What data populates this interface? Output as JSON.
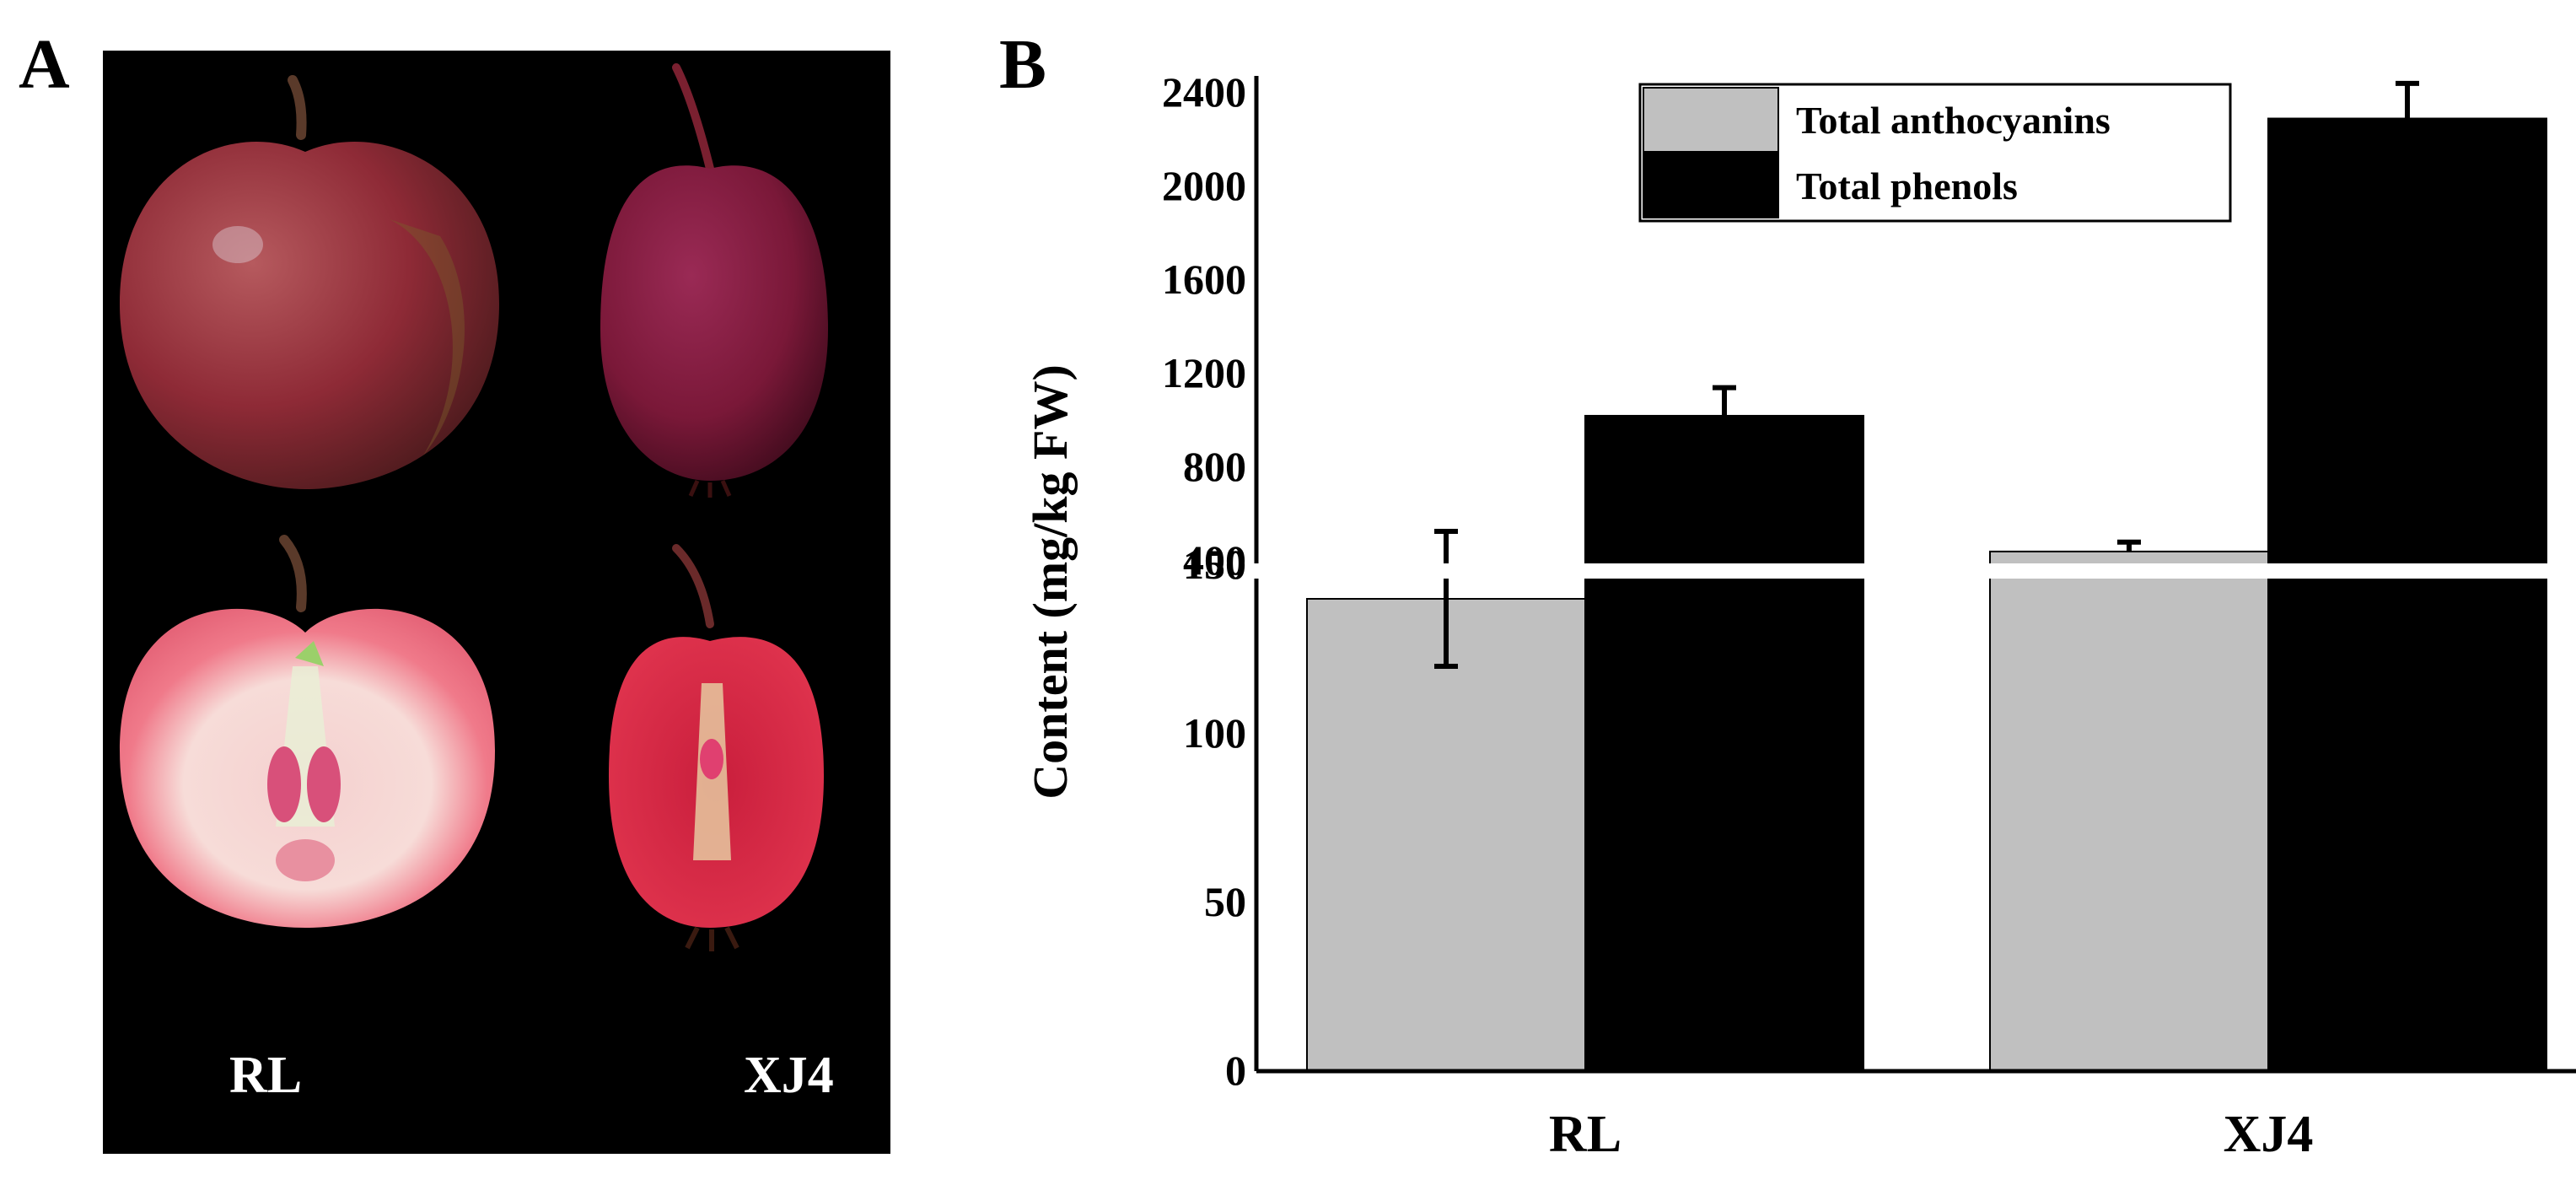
{
  "panel_a": {
    "letter": "A",
    "samples": [
      {
        "label": "RL",
        "skin_color": "#8e2a36",
        "flesh_color": "#f07a8a",
        "flesh_inner": "#f4d0cf"
      },
      {
        "label": "XJ4",
        "skin_color": "#7a1838",
        "flesh_color": "#e0344e",
        "flesh_inner": "#c91e3c"
      }
    ]
  },
  "panel_b": {
    "letter": "B"
  },
  "chart_data": {
    "type": "bar",
    "ylabel": "Content (mg/kg FW)",
    "categories": [
      "RL",
      "XJ4"
    ],
    "series": [
      {
        "name": "Total anthocyanins",
        "color": "#c0c0c0",
        "values": [
          140,
          440
        ],
        "errors": [
          20,
          40
        ]
      },
      {
        "name": "Total phenols",
        "color": "#000000",
        "values": [
          1020,
          2290
        ],
        "errors": [
          120,
          150
        ]
      }
    ],
    "axis_break": {
      "lower_range": [
        0,
        375
      ],
      "upper_range": [
        400,
        2400
      ]
    },
    "ylim": [
      0,
      2400
    ],
    "lower_ticks": [
      "0",
      "50",
      "100",
      "150"
    ],
    "upper_ticks": [
      "400",
      "800",
      "1200",
      "1600",
      "2000",
      "2400"
    ],
    "legend_position": "top-right",
    "grid": false
  }
}
